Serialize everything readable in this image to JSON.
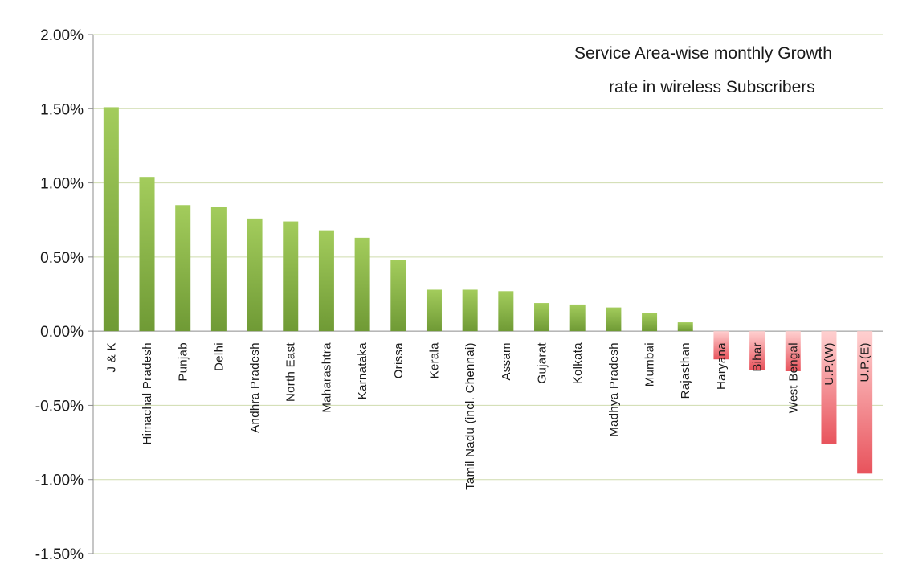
{
  "chart_data": {
    "type": "bar",
    "title_lines": [
      "Service Area-wise monthly Growth",
      "rate in wireless Subscribers"
    ],
    "xlabel": "",
    "ylabel": "",
    "ylim": [
      -0.015,
      0.02
    ],
    "yticks": [
      {
        "value": 0.02,
        "label": "2.00%"
      },
      {
        "value": 0.015,
        "label": "1.50%"
      },
      {
        "value": 0.01,
        "label": "1.00%"
      },
      {
        "value": 0.005,
        "label": "0.50%"
      },
      {
        "value": 0.0,
        "label": "0.00%"
      },
      {
        "value": -0.005,
        "label": "-0.50%"
      },
      {
        "value": -0.01,
        "label": "-1.00%"
      },
      {
        "value": -0.015,
        "label": "-1.50%"
      }
    ],
    "grid": true,
    "categories": [
      "J & K",
      "Himachal Pradesh",
      "Punjab",
      "Delhi",
      "Andhra Pradesh",
      "North East",
      "Maharashtra",
      "Karnataka",
      "Orissa",
      "Kerala",
      "Tamil Nadu (incl. Chennai)",
      "Assam",
      "Gujarat",
      "Kolkata",
      "Madhya Pradesh",
      "Mumbai",
      "Rajasthan",
      "Haryana",
      "Bihar",
      "West Bengal",
      "U.P.(W)",
      "U.P.(E)"
    ],
    "values": [
      0.0151,
      0.0104,
      0.0085,
      0.0084,
      0.0076,
      0.0074,
      0.0068,
      0.0063,
      0.0048,
      0.0028,
      0.0028,
      0.0027,
      0.0019,
      0.0018,
      0.0016,
      0.0012,
      0.0006,
      -0.0019,
      -0.0026,
      -0.0027,
      -0.0076,
      -0.0096
    ],
    "colors": {
      "positive": "#6f9a35",
      "positive_light": "#a3cc5c",
      "negative": "#e8535c",
      "negative_light": "#ffd0d0",
      "grid": "#cfdcae",
      "axis": "#8c8c8c"
    }
  }
}
